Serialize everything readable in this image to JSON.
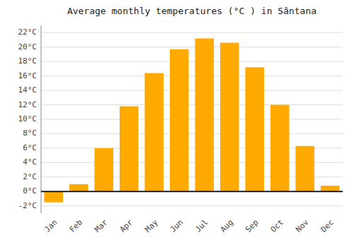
{
  "chart_data": {
    "type": "bar",
    "title": "Average monthly temperatures (°C ) in Sântana",
    "categories": [
      "Jan",
      "Feb",
      "Mar",
      "Apr",
      "May",
      "Jun",
      "Jul",
      "Aug",
      "Sep",
      "Oct",
      "Nov",
      "Dec"
    ],
    "values": [
      -1.5,
      1.0,
      6.0,
      11.8,
      16.4,
      19.7,
      21.2,
      20.6,
      17.2,
      12.0,
      6.3,
      0.8
    ],
    "color": "#FFAA00",
    "ylim": [
      -3,
      23
    ],
    "yticks": [
      {
        "value": -2,
        "label": "-2°C"
      },
      {
        "value": 0,
        "label": "0°C"
      },
      {
        "value": 2,
        "label": "2°C"
      },
      {
        "value": 4,
        "label": "4°C"
      },
      {
        "value": 6,
        "label": "6°C"
      },
      {
        "value": 8,
        "label": "8°C"
      },
      {
        "value": 10,
        "label": "10°C"
      },
      {
        "value": 12,
        "label": "12°C"
      },
      {
        "value": 14,
        "label": "14°C"
      },
      {
        "value": 16,
        "label": "16°C"
      },
      {
        "value": 18,
        "label": "18°C"
      },
      {
        "value": 20,
        "label": "20°C"
      },
      {
        "value": 22,
        "label": "22°C"
      }
    ],
    "grid": true
  }
}
